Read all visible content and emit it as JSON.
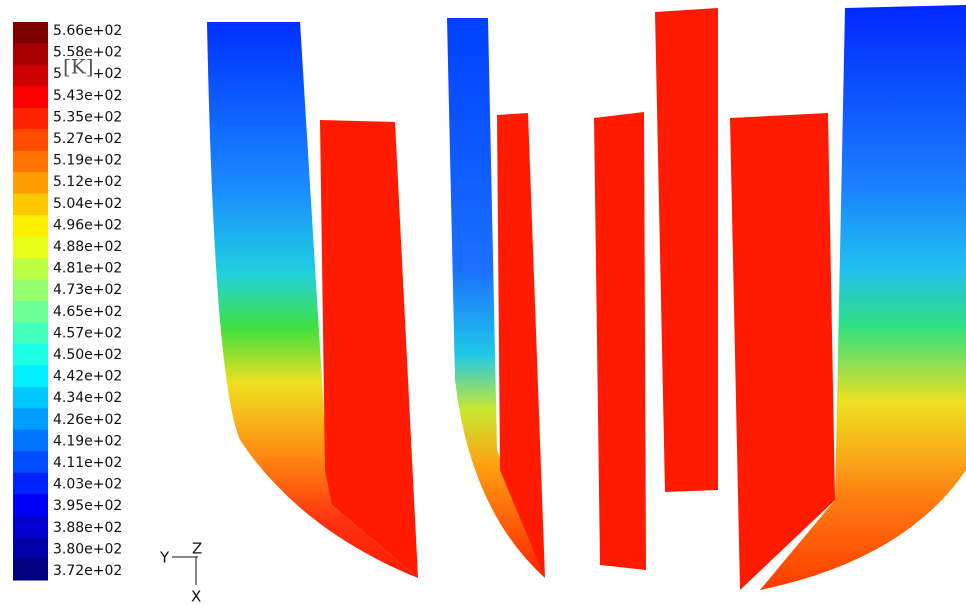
{
  "colorbar": {
    "unit": "[K]",
    "labels": [
      "5.66e+02",
      "5.58e+02",
      "5.50e+02",
      "5.43e+02",
      "5.35e+02",
      "5.27e+02",
      "5.19e+02",
      "5.12e+02",
      "5.04e+02",
      "4.96e+02",
      "4.88e+02",
      "4.81e+02",
      "4.73e+02",
      "4.65e+02",
      "4.57e+02",
      "4.50e+02",
      "4.42e+02",
      "4.34e+02",
      "4.26e+02",
      "4.19e+02",
      "4.11e+02",
      "4.03e+02",
      "3.95e+02",
      "3.88e+02",
      "3.80e+02",
      "3.72e+02"
    ]
  },
  "axes": {
    "y": "Y",
    "z": "Z",
    "x": "X"
  }
}
